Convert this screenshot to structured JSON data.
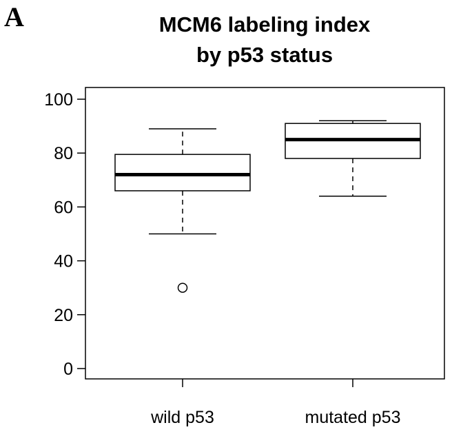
{
  "panel_label": "A",
  "chart_data": {
    "type": "boxplot",
    "title": [
      "MCM6 labeling index",
      "by p53 status"
    ],
    "xlabel": "",
    "ylabel": "",
    "ylim": [
      0,
      100
    ],
    "yticks": [
      0,
      20,
      40,
      60,
      80,
      100
    ],
    "grid": false,
    "legend": "none",
    "categories": [
      "wild p53",
      "mutated p53"
    ],
    "boxes": [
      {
        "category": "wild p53",
        "whisker_low": 50,
        "q1": 66,
        "median": 72,
        "q3": 79.5,
        "whisker_high": 89,
        "outliers": [
          30
        ]
      },
      {
        "category": "mutated p53",
        "whisker_low": 64,
        "q1": 78,
        "median": 85,
        "q3": 91,
        "whisker_high": 92,
        "outliers": []
      }
    ]
  }
}
